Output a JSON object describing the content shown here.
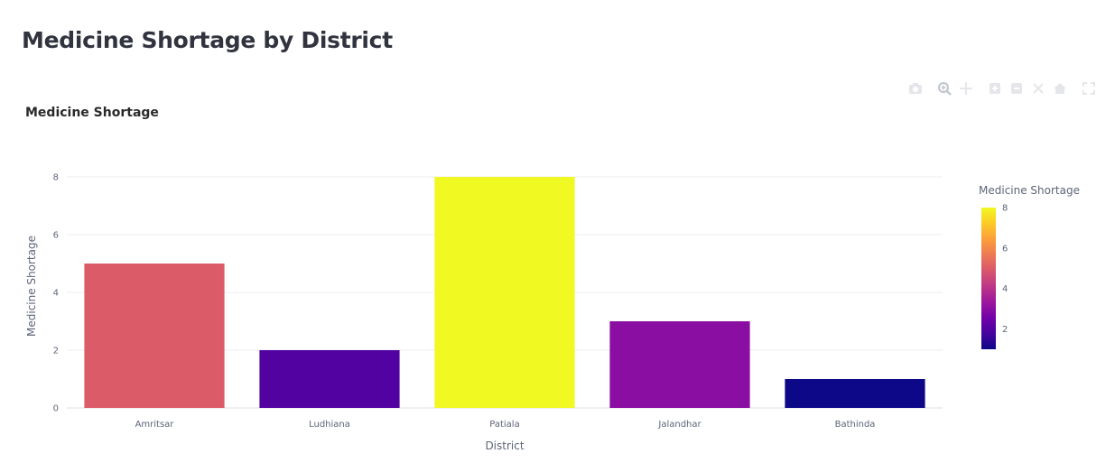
{
  "page": {
    "title": "Medicine Shortage by District"
  },
  "modebar": {
    "icons": [
      "camera-icon",
      "zoom-icon",
      "pan-icon",
      "zoom-in-icon",
      "zoom-out-icon",
      "autoscale-icon",
      "reset-axes-icon",
      "fullscreen-icon"
    ]
  },
  "chart_data": {
    "type": "bar",
    "title": "Medicine Shortage",
    "categories": [
      "Amritsar",
      "Ludhiana",
      "Patiala",
      "Jalandhar",
      "Bathinda"
    ],
    "values": [
      5,
      2,
      8,
      3,
      1
    ],
    "xlabel": "District",
    "ylabel": "Medicine Shortage",
    "ylim": [
      0,
      8.5
    ],
    "yticks": [
      0,
      2,
      4,
      6,
      8
    ],
    "grid": true,
    "colorscale": "plasma",
    "colorbar": {
      "title": "Medicine Shortage",
      "range": [
        1,
        8
      ],
      "ticks": [
        2,
        4,
        6,
        8
      ]
    },
    "legend_position": "right"
  }
}
